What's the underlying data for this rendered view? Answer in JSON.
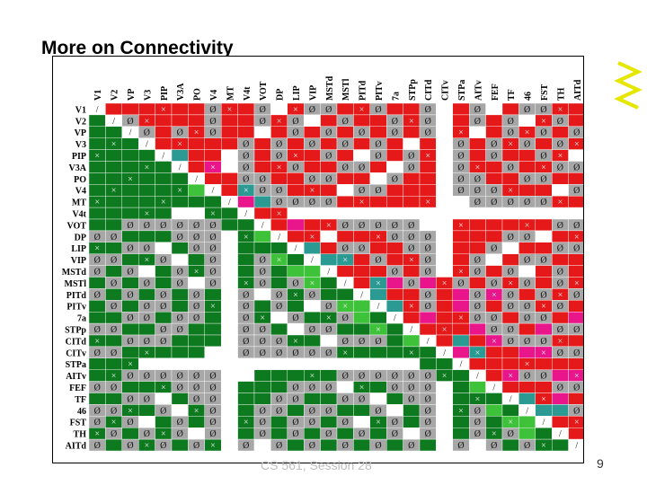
{
  "slide": {
    "title": "More on Connectivity",
    "footer_text": "CS 561, Session 28",
    "page_number": "9"
  },
  "matrix": {
    "areas": [
      "V1",
      "V2",
      "VP",
      "V3",
      "PIP",
      "V3A",
      "PO",
      "V4",
      "MT",
      "V4t",
      "VOT",
      "DP",
      "LIP",
      "VIP",
      "MSTd",
      "MSTl",
      "PITd",
      "PITv",
      "7a",
      "STPp",
      "CITd",
      "CITv",
      "STPa",
      "AITv",
      "FEF",
      "TF",
      "46",
      "FST",
      "TH",
      "AITd"
    ],
    "colors": {
      "red": "#e51919",
      "green": "#0e7a1f",
      "gray": "#a7a7a7",
      "magenta": "#e8168a",
      "teal": "#2b9a92",
      "lightgreen": "#3ec23a",
      "white": "#ffffff"
    },
    "symbols": {
      "none": "Ø",
      "diag": "/"
    }
  }
}
